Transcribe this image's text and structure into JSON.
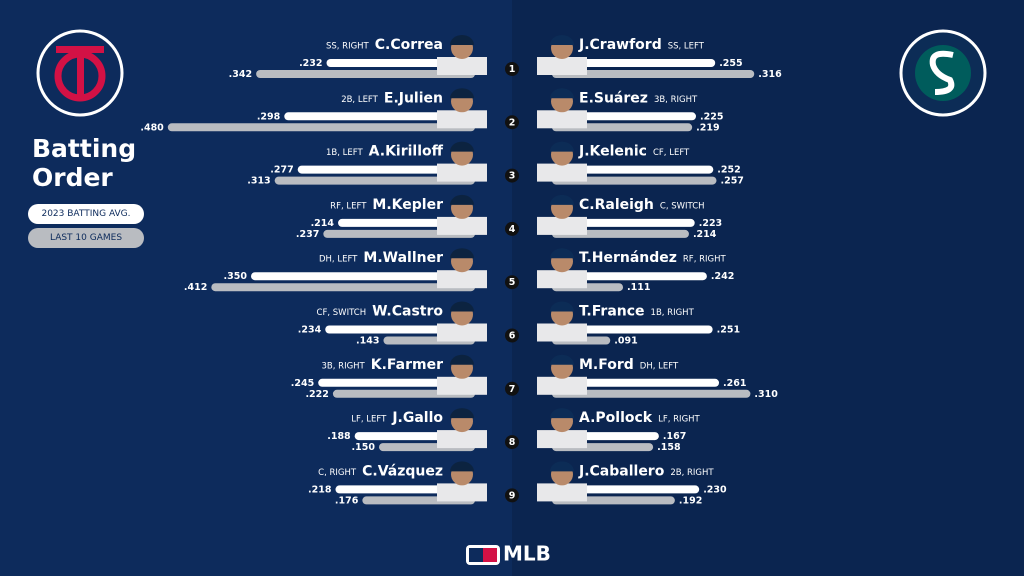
{
  "title": "Batting Order",
  "legend": [
    "2023 BATTING AVG.",
    "LAST 10 GAMES"
  ],
  "orders": [
    "1",
    "2",
    "3",
    "4",
    "5",
    "6",
    "7",
    "8",
    "9"
  ],
  "footer": "MLB",
  "teams": {
    "left": {
      "players": [
        {
          "name": "C.Correa",
          "pos": "SS, RIGHT",
          "avg": {
            "value": 0.232,
            "label": ".232"
          },
          "last10": {
            "value": 0.342,
            "label": ".342"
          }
        },
        {
          "name": "E.Julien",
          "pos": "2B, LEFT",
          "avg": {
            "value": 0.298,
            "label": ".298"
          },
          "last10": {
            "value": 0.48,
            "label": ".480"
          }
        },
        {
          "name": "A.Kirilloff",
          "pos": "1B, LEFT",
          "avg": {
            "value": 0.277,
            "label": ".277"
          },
          "last10": {
            "value": 0.313,
            "label": ".313"
          }
        },
        {
          "name": "M.Kepler",
          "pos": "RF, LEFT",
          "avg": {
            "value": 0.214,
            "label": ".214"
          },
          "last10": {
            "value": 0.237,
            "label": ".237"
          }
        },
        {
          "name": "M.Wallner",
          "pos": "DH, LEFT",
          "avg": {
            "value": 0.35,
            "label": ".350"
          },
          "last10": {
            "value": 0.412,
            "label": ".412"
          }
        },
        {
          "name": "W.Castro",
          "pos": "CF, SWITCH",
          "avg": {
            "value": 0.234,
            "label": ".234"
          },
          "last10": {
            "value": 0.143,
            "label": ".143"
          }
        },
        {
          "name": "K.Farmer",
          "pos": "3B, RIGHT",
          "avg": {
            "value": 0.245,
            "label": ".245"
          },
          "last10": {
            "value": 0.222,
            "label": ".222"
          }
        },
        {
          "name": "J.Gallo",
          "pos": "LF, LEFT",
          "avg": {
            "value": 0.188,
            "label": ".188"
          },
          "last10": {
            "value": 0.15,
            "label": ".150"
          }
        },
        {
          "name": "C.Vázquez",
          "pos": "C, RIGHT",
          "avg": {
            "value": 0.218,
            "label": ".218"
          },
          "last10": {
            "value": 0.176,
            "label": ".176"
          }
        }
      ]
    },
    "right": {
      "players": [
        {
          "name": "J.Crawford",
          "pos": "SS, LEFT",
          "avg": {
            "value": 0.255,
            "label": ".255"
          },
          "last10": {
            "value": 0.316,
            "label": ".316"
          }
        },
        {
          "name": "E.Suárez",
          "pos": "3B, RIGHT",
          "avg": {
            "value": 0.225,
            "label": ".225"
          },
          "last10": {
            "value": 0.219,
            "label": ".219"
          }
        },
        {
          "name": "J.Kelenic",
          "pos": "CF, LEFT",
          "avg": {
            "value": 0.252,
            "label": ".252"
          },
          "last10": {
            "value": 0.257,
            "label": ".257"
          }
        },
        {
          "name": "C.Raleigh",
          "pos": "C, SWITCH",
          "avg": {
            "value": 0.223,
            "label": ".223"
          },
          "last10": {
            "value": 0.214,
            "label": ".214"
          }
        },
        {
          "name": "T.Hernández",
          "pos": "RF, RIGHT",
          "avg": {
            "value": 0.242,
            "label": ".242"
          },
          "last10": {
            "value": 0.111,
            "label": ".111"
          }
        },
        {
          "name": "T.France",
          "pos": "1B, RIGHT",
          "avg": {
            "value": 0.251,
            "label": ".251"
          },
          "last10": {
            "value": 0.091,
            "label": ".091"
          }
        },
        {
          "name": "M.Ford",
          "pos": "DH, LEFT",
          "avg": {
            "value": 0.261,
            "label": ".261"
          },
          "last10": {
            "value": 0.31,
            "label": ".310"
          }
        },
        {
          "name": "A.Pollock",
          "pos": "LF, RIGHT",
          "avg": {
            "value": 0.167,
            "label": ".167"
          },
          "last10": {
            "value": 0.158,
            "label": ".158"
          }
        },
        {
          "name": "J.Caballero",
          "pos": "2B, RIGHT",
          "avg": {
            "value": 0.23,
            "label": ".230"
          },
          "last10": {
            "value": 0.192,
            "label": ".192"
          }
        }
      ]
    }
  }
}
